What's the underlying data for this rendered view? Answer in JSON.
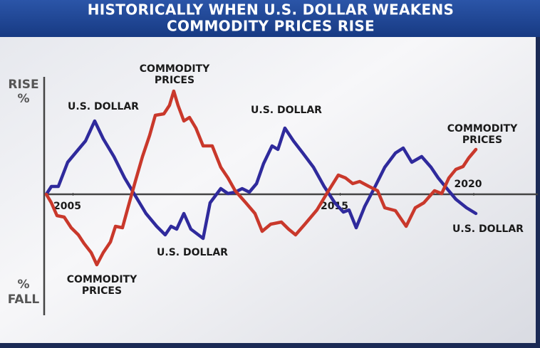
{
  "chart_data": {
    "type": "line",
    "title": [
      "HISTORICALLY WHEN U.S. DOLLAR WEAKENS",
      "COMMODITY PRICES RISE"
    ],
    "y_label_top": [
      "RISE",
      "%"
    ],
    "y_label_bottom": [
      "%",
      "FALL"
    ],
    "xlim": [
      2004,
      2022.4
    ],
    "ylim": [
      -170,
      165
    ],
    "xticks": [
      2005,
      2015,
      2020
    ],
    "series": [
      {
        "name": "U.S. DOLLAR",
        "color": "#2f2a9c",
        "x": [
          2004.0,
          2004.19,
          2004.45,
          2004.8,
          2005.2,
          2005.47,
          2005.81,
          2006.13,
          2006.53,
          2006.93,
          2007.33,
          2007.73,
          2008.13,
          2008.45,
          2008.67,
          2008.88,
          2009.15,
          2009.41,
          2009.87,
          2010.13,
          2010.53,
          2010.8,
          2011.07,
          2011.33,
          2011.6,
          2011.87,
          2012.13,
          2012.45,
          2012.67,
          2012.93,
          2013.25,
          2013.6,
          2014.0,
          2014.4,
          2014.8,
          2015.12,
          2015.33,
          2015.6,
          2015.92,
          2016.27,
          2016.67,
          2017.07,
          2017.36,
          2017.68,
          2018.05,
          2018.4,
          2018.67,
          2018.93,
          2019.33,
          2019.73,
          2020.08
        ],
        "values": [
          0,
          11,
          11,
          45,
          63,
          75,
          103,
          78,
          53,
          23,
          -2,
          -27,
          -45,
          -57,
          -45,
          -49,
          -27,
          -49,
          -62,
          -12,
          8,
          1,
          3,
          8,
          3,
          15,
          43,
          68,
          63,
          93,
          75,
          58,
          38,
          11,
          -12,
          -25,
          -22,
          -47,
          -17,
          8,
          38,
          58,
          65,
          45,
          53,
          38,
          23,
          11,
          -7,
          -19,
          -27
        ]
      },
      {
        "name": "COMMODITY PRICES",
        "color": "#c9382b",
        "x": [
          2004.0,
          2004.19,
          2004.4,
          2004.67,
          2004.93,
          2005.2,
          2005.41,
          2005.68,
          2005.89,
          2006.13,
          2006.4,
          2006.59,
          2006.85,
          2007.07,
          2007.33,
          2007.6,
          2007.87,
          2008.08,
          2008.4,
          2008.61,
          2008.77,
          2008.93,
          2009.15,
          2009.36,
          2009.6,
          2009.87,
          2010.21,
          2010.53,
          2010.8,
          2011.07,
          2011.47,
          2011.81,
          2012.08,
          2012.4,
          2012.8,
          2013.07,
          2013.33,
          2013.68,
          2014.13,
          2014.53,
          2014.93,
          2015.2,
          2015.47,
          2015.73,
          2016.08,
          2016.4,
          2016.67,
          2017.07,
          2017.47,
          2017.81,
          2018.13,
          2018.53,
          2018.8,
          2019.07,
          2019.33,
          2019.6,
          2019.81,
          2020.08
        ],
        "values": [
          0,
          -12,
          -30,
          -32,
          -47,
          -57,
          -69,
          -82,
          -99,
          -82,
          -67,
          -45,
          -47,
          -17,
          18,
          53,
          83,
          111,
          113,
          125,
          145,
          125,
          103,
          108,
          93,
          68,
          68,
          38,
          23,
          5,
          -12,
          -27,
          -52,
          -42,
          -39,
          -49,
          -57,
          -42,
          -22,
          3,
          27,
          23,
          15,
          18,
          11,
          5,
          -19,
          -23,
          -45,
          -19,
          -12,
          5,
          1,
          23,
          35,
          39,
          51,
          63
        ]
      }
    ],
    "annotations": [
      [
        "U.S. DOLLAR"
      ],
      [
        "COMMODITY",
        "PRICES"
      ],
      [
        "U.S. DOLLAR"
      ],
      [
        "COMMODITY",
        "PRICES"
      ],
      [
        "U.S. DOLLAR"
      ],
      [
        "COMMODITY",
        "PRICES"
      ],
      [
        "U.S. DOLLAR"
      ]
    ]
  }
}
